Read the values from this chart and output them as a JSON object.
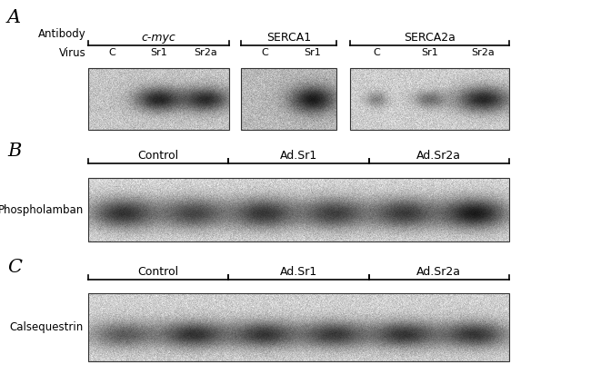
{
  "fig_width": 6.5,
  "fig_height": 4.23,
  "bg_color": "#ffffff",
  "panel_A": {
    "label": "A",
    "antibody_label": "Antibody",
    "virus_label": "Virus",
    "group1": {
      "name": "c-myc",
      "italic": true,
      "lanes": [
        "C",
        "Sr1",
        "Sr2a"
      ],
      "bg_gray": 0.75,
      "bands": [
        {
          "lane": 1,
          "intensity": 0.88
        },
        {
          "lane": 2,
          "intensity": 0.85
        }
      ]
    },
    "group2": {
      "name": "SERCA1",
      "italic": false,
      "lanes": [
        "C",
        "Sr1"
      ],
      "bg_gray": 0.7,
      "bands": [
        {
          "lane": 1,
          "intensity": 0.92
        }
      ]
    },
    "group3": {
      "name": "SERCA2a",
      "italic": false,
      "lanes": [
        "C",
        "Sr1",
        "Sr2a"
      ],
      "bg_gray": 0.78,
      "bands": [
        {
          "lane": 0,
          "intensity": 0.35
        },
        {
          "lane": 1,
          "intensity": 0.45
        },
        {
          "lane": 2,
          "intensity": 0.88
        }
      ]
    }
  },
  "panel_B": {
    "label": "B",
    "protein": "Phospholamban",
    "groups": [
      "Control",
      "Ad.Sr1",
      "Ad.Sr2a"
    ],
    "bg_gray": 0.82,
    "band_intensity": [
      0.82,
      0.72,
      0.8,
      0.76,
      0.78,
      0.95
    ]
  },
  "panel_C": {
    "label": "C",
    "protein": "Calsequestrin",
    "groups": [
      "Control",
      "Ad.Sr1",
      "Ad.Sr2a"
    ],
    "bg_gray": 0.8,
    "band_intensity": [
      0.6,
      0.82,
      0.8,
      0.78,
      0.8,
      0.8
    ]
  }
}
